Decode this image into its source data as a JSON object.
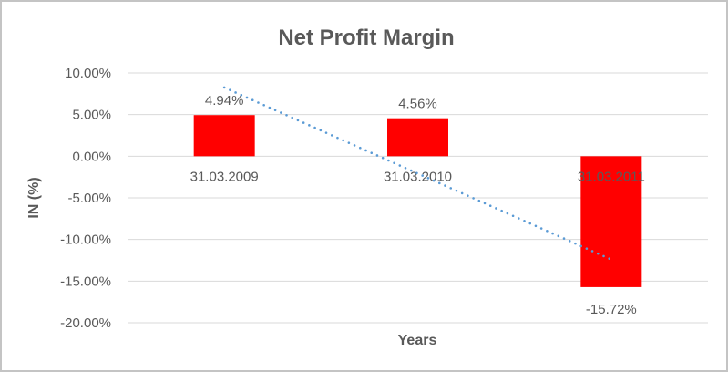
{
  "chart_data": {
    "type": "bar",
    "title": "Net Profit Margin",
    "categories": [
      "31.03.2009",
      "31.03.2010",
      "31.03.2011"
    ],
    "values": [
      4.94,
      4.56,
      -15.72
    ],
    "data_labels": [
      "4.94%",
      "4.56%",
      "-15.72%"
    ],
    "xlabel": "Years",
    "ylabel": "IN (%)",
    "ylim": [
      -20,
      10
    ],
    "ytick_step": 5,
    "yticks": [
      "10.00%",
      "5.00%",
      "0.00%",
      "-5.00%",
      "-10.00%",
      "-15.00%",
      "-20.00%"
    ],
    "grid": true,
    "legend": false,
    "bar_color": "#ff0000",
    "trendline": {
      "type": "linear",
      "style": "dotted",
      "color": "#5b9bd5"
    },
    "colors": {
      "text": "#595959",
      "title_text": "#595959",
      "gridline": "#d9d9d9",
      "frame_border": "#c4c4c4",
      "background": "#ffffff"
    }
  }
}
